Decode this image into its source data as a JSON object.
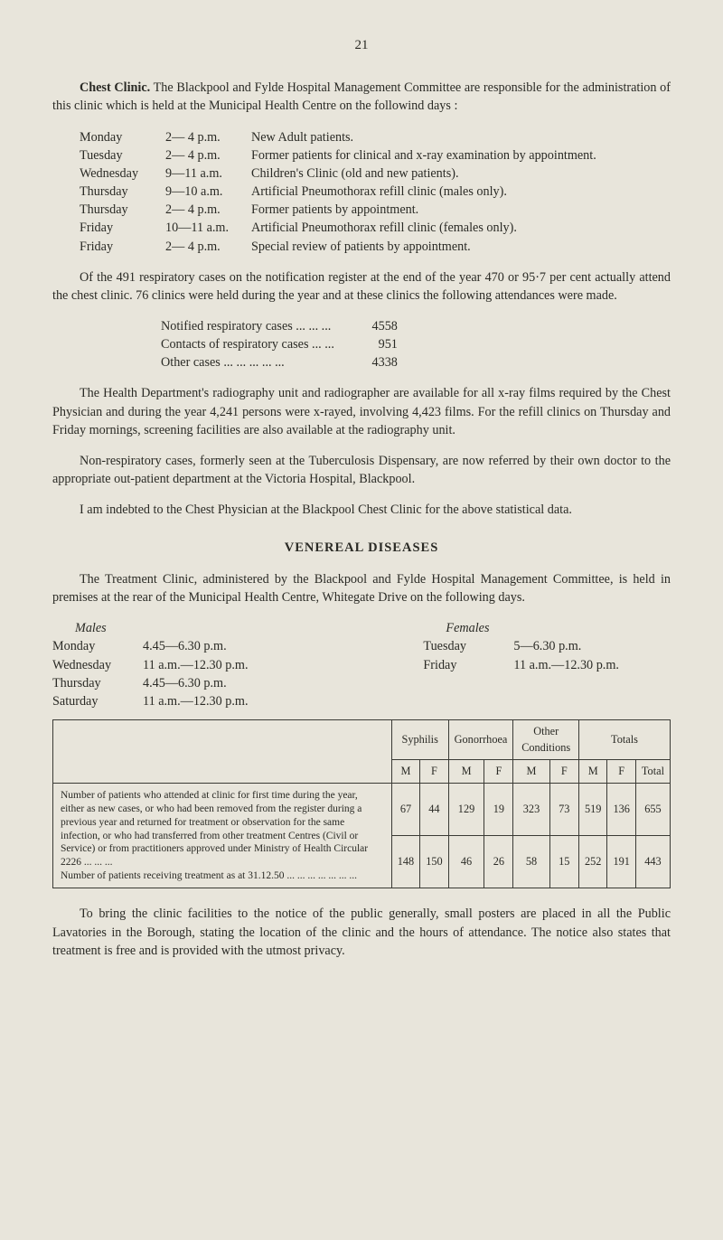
{
  "page_number": "21",
  "p_chest_intro": "The Blackpool and Fylde Hospital Management Committee are responsible for the administration of this clinic which is held at the Municipal Health Centre on the followind days :",
  "chest_label": "Chest Clinic.",
  "schedule": [
    {
      "day": "Monday",
      "time": "2— 4 p.m.",
      "note": "New Adult patients."
    },
    {
      "day": "Tuesday",
      "time": "2— 4 p.m.",
      "note": "Former patients for clinical and x-ray examination by appointment."
    },
    {
      "day": "Wednesday",
      "time": "9—11 a.m.",
      "note": "Children's Clinic (old and new patients)."
    },
    {
      "day": "Thursday",
      "time": "9—10 a.m.",
      "note": "Artificial Pneumothorax refill clinic (males only)."
    },
    {
      "day": "Thursday",
      "time": "2— 4 p.m.",
      "note": "Former patients by appointment."
    },
    {
      "day": "Friday",
      "time": "10—11 a.m.",
      "note": "Artificial Pneumothorax refill clinic (females only)."
    },
    {
      "day": "Friday",
      "time": "2— 4 p.m.",
      "note": "Special review of patients by appointment."
    }
  ],
  "p_491": "Of the 491 respiratory cases on the notification register at the end of the year 470 or 95·7 per cent actually attend the chest clinic. 76 clinics were held during the year and at these clinics the following attendances were made.",
  "counts": [
    {
      "label": "Notified respiratory cases   ...      ...      ...",
      "value": "4558"
    },
    {
      "label": "Contacts of respiratory cases      ...      ...",
      "value": "951"
    },
    {
      "label": "Other cases   ...      ...      ...      ...      ...",
      "value": "4338"
    }
  ],
  "p_health_dept": "The Health Department's radiography unit and radiographer are available for all x-ray films required by the Chest Physician and during the year 4,241 persons were x-rayed, involving 4,423 films. For the refill clinics on Thursday and Friday mornings, screening facilities are also available at the radiography unit.",
  "p_nonresp": "Non-respiratory cases, formerly seen at the Tuberculosis Dispensary, are now referred by their own doctor to the appropriate out-patient department at the Victoria Hospital, Blackpool.",
  "p_indebted": "I am indebted to the Chest Physician at the Blackpool Chest Clinic for the above statistical data.",
  "heading_vd": "VENEREAL  DISEASES",
  "p_treatment": "The Treatment Clinic, administered by the Blackpool and Fylde Hospital Management Committee, is held in premises at the rear of the Municipal Health Centre, Whitegate Drive on the following days.",
  "males_label": "Males",
  "females_label": "Females",
  "males_schedule": [
    {
      "day": "Monday",
      "time": "4.45—6.30 p.m."
    },
    {
      "day": "Wednesday",
      "time": "11 a.m.—12.30 p.m."
    },
    {
      "day": "Thursday",
      "time": "4.45—6.30 p.m."
    },
    {
      "day": "Saturday",
      "time": "11 a.m.—12.30 p.m."
    }
  ],
  "females_schedule": [
    {
      "day": "Tuesday",
      "time": "5—6.30 p.m."
    },
    {
      "day": "Friday",
      "time": "11 a.m.—12.30 p.m."
    }
  ],
  "table": {
    "group_headers": [
      "Syphilis",
      "Gonorrhoea",
      "Other Conditions",
      "Totals"
    ],
    "sub_headers": [
      "M",
      "F",
      "M",
      "F",
      "M",
      "F",
      "M",
      "F",
      "Total"
    ],
    "rows": [
      {
        "desc": "Number of patients who attended at clinic for first time during the year, either as new cases, or who had been removed from the register during a previous year and returned for treatment or observation for the same infection, or who had transferred from other treatment Centres (Civil or Service) or from practitioners approved under Ministry of Health Circular 2226      ...      ...      ...",
        "cells": [
          "67",
          "44",
          "129",
          "19",
          "323",
          "73",
          "519",
          "136",
          "655"
        ]
      },
      {
        "desc": "Number of patients receiving treatment as at 31.12.50 ...      ...      ...      ...      ...      ...      ...",
        "cells": [
          "148",
          "150",
          "46",
          "26",
          "58",
          "15",
          "252",
          "191",
          "443"
        ]
      }
    ]
  },
  "p_closing": "To bring the clinic facilities to the notice of the public generally, small posters are placed in all the Public Lavatories in the Borough, stating the location of the clinic and the hours of attendance. The notice also states that treatment is free and is provided with the utmost privacy."
}
